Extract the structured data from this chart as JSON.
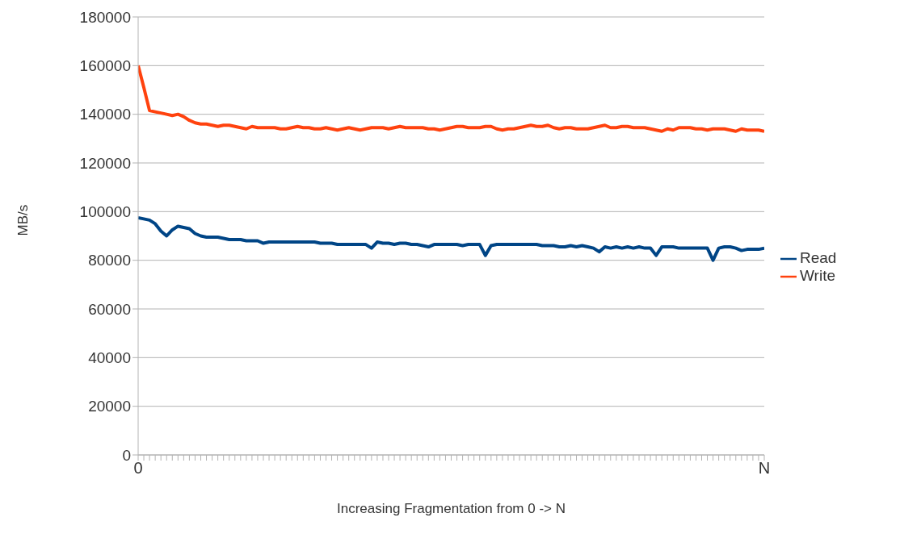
{
  "chart_data": {
    "type": "line",
    "xlabel": "Increasing Fragmentation from 0 -> N",
    "ylabel": "MB/s",
    "categories": [
      "0",
      null,
      null,
      null,
      null,
      null,
      null,
      null,
      null,
      null,
      null,
      null,
      null,
      null,
      null,
      null,
      null,
      null,
      null,
      null,
      null,
      null,
      null,
      null,
      null,
      null,
      null,
      null,
      null,
      null,
      null,
      null,
      null,
      null,
      null,
      null,
      null,
      null,
      null,
      null,
      null,
      null,
      null,
      null,
      null,
      null,
      null,
      null,
      null,
      null,
      null,
      null,
      null,
      null,
      null,
      null,
      null,
      null,
      null,
      null,
      null,
      null,
      null,
      null,
      null,
      null,
      null,
      null,
      null,
      null,
      null,
      null,
      null,
      null,
      null,
      null,
      null,
      null,
      null,
      null,
      null,
      null,
      null,
      null,
      null,
      null,
      null,
      null,
      null,
      null,
      null,
      null,
      null,
      null,
      null,
      null,
      null,
      null,
      null,
      null,
      null,
      null,
      null,
      null,
      null,
      null,
      null,
      null,
      null,
      null,
      "N"
    ],
    "series": [
      {
        "name": "Read",
        "color": "#004586",
        "values": [
          97500,
          97000,
          96500,
          95000,
          92000,
          90000,
          92500,
          94000,
          93500,
          93000,
          91000,
          90000,
          89500,
          89500,
          89500,
          89000,
          88500,
          88500,
          88500,
          88000,
          88000,
          88000,
          87000,
          87500,
          87500,
          87500,
          87500,
          87500,
          87500,
          87500,
          87500,
          87500,
          87000,
          87000,
          87000,
          86500,
          86500,
          86500,
          86500,
          86500,
          86500,
          85000,
          87500,
          87000,
          87000,
          86500,
          87000,
          87000,
          86500,
          86500,
          86000,
          85500,
          86500,
          86500,
          86500,
          86500,
          86500,
          86000,
          86500,
          86500,
          86500,
          82000,
          86000,
          86500,
          86500,
          86500,
          86500,
          86500,
          86500,
          86500,
          86500,
          86000,
          86000,
          86000,
          85500,
          85500,
          86000,
          85500,
          86000,
          85500,
          85000,
          83500,
          85500,
          85000,
          85500,
          85000,
          85500,
          85000,
          85500,
          85000,
          85000,
          82000,
          85500,
          85500,
          85500,
          85000,
          85000,
          85000,
          85000,
          85000,
          85000,
          80000,
          85000,
          85500,
          85500,
          85000,
          84000,
          84500,
          84500,
          84500,
          85000
        ]
      },
      {
        "name": "Write",
        "color": "#ff420e",
        "values": [
          160000,
          151000,
          141500,
          141000,
          140500,
          140000,
          139500,
          140000,
          139000,
          137500,
          136500,
          136000,
          136000,
          135500,
          135000,
          135500,
          135500,
          135000,
          134500,
          134000,
          135000,
          134500,
          134500,
          134500,
          134500,
          134000,
          134000,
          134500,
          135000,
          134500,
          134500,
          134000,
          134000,
          134500,
          134000,
          133500,
          134000,
          134500,
          134000,
          133500,
          134000,
          134500,
          134500,
          134500,
          134000,
          134500,
          135000,
          134500,
          134500,
          134500,
          134500,
          134000,
          134000,
          133500,
          134000,
          134500,
          135000,
          135000,
          134500,
          134500,
          134500,
          135000,
          135000,
          134000,
          133500,
          134000,
          134000,
          134500,
          135000,
          135500,
          135000,
          135000,
          135500,
          134500,
          134000,
          134500,
          134500,
          134000,
          134000,
          134000,
          134500,
          135000,
          135500,
          134500,
          134500,
          135000,
          135000,
          134500,
          134500,
          134500,
          134000,
          133500,
          133000,
          134000,
          133500,
          134500,
          134500,
          134500,
          134000,
          134000,
          133500,
          134000,
          134000,
          134000,
          133500,
          133000,
          134000,
          133500,
          133500,
          133500,
          133000
        ]
      }
    ],
    "ylim": [
      0,
      180000
    ],
    "yticks": [
      0,
      20000,
      40000,
      60000,
      80000,
      100000,
      120000,
      140000,
      160000,
      180000
    ],
    "grid": "y",
    "legend": "right",
    "marker": "none",
    "line_style": "solid"
  }
}
